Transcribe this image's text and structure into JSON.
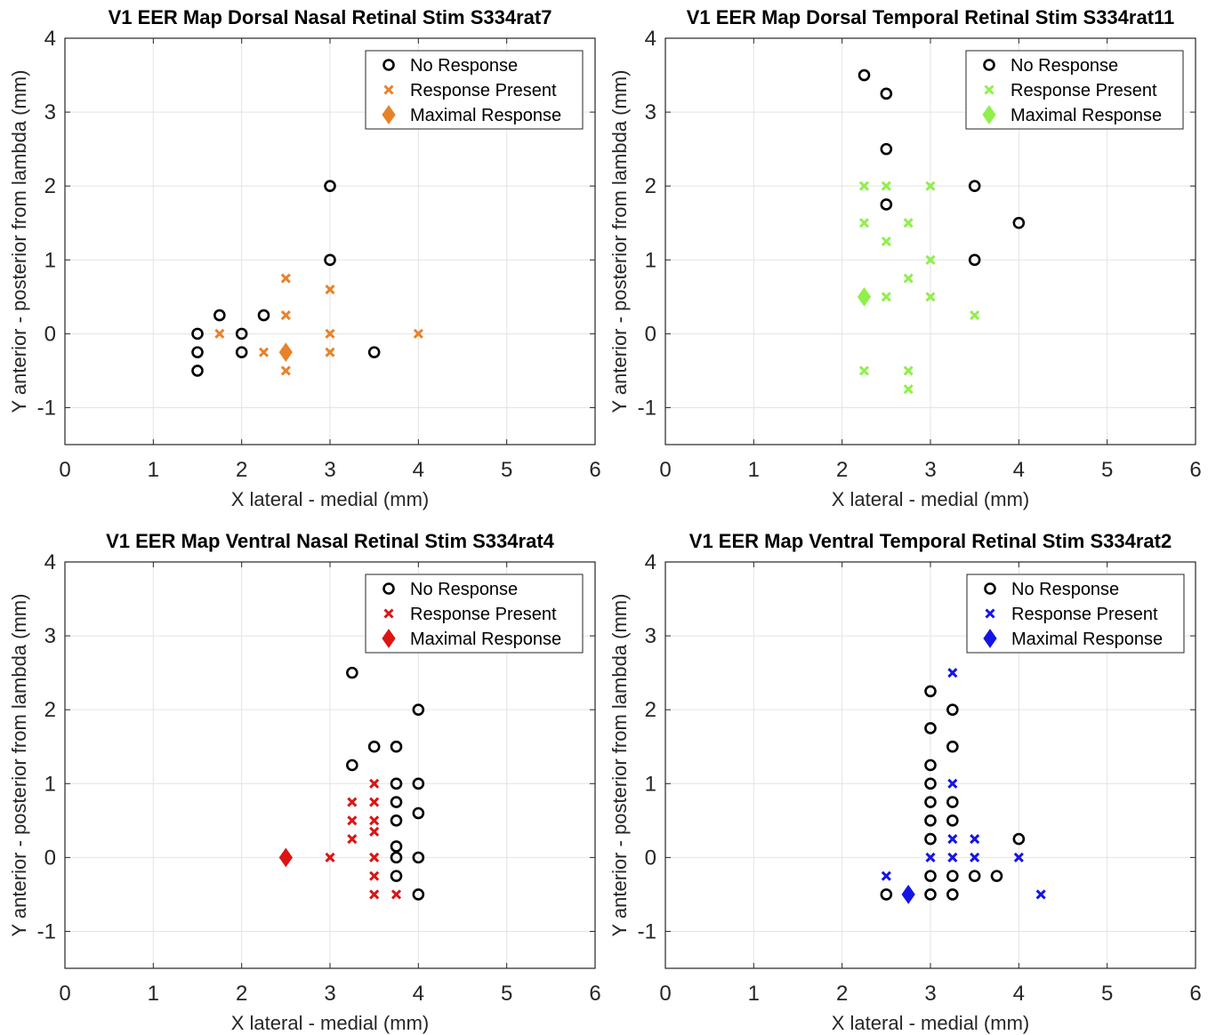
{
  "legend_labels": {
    "no_response": "No Response",
    "response": "Response Present",
    "maximal": "Maximal Response"
  },
  "chart_data": [
    {
      "type": "scatter",
      "title": "V1 EER Map Dorsal Nasal Retinal Stim S334rat7",
      "xlabel": "X lateral - medial (mm)",
      "ylabel": "Y anterior - posterior from lambda (mm)",
      "xlim": [
        0,
        6
      ],
      "ylim": [
        -1.5,
        4
      ],
      "xticks": [
        0,
        1,
        2,
        3,
        4,
        5,
        6
      ],
      "yticks": [
        -1,
        0,
        1,
        2,
        3,
        4
      ],
      "grid": true,
      "legend_position": "top-right",
      "response_color": "#e8822a",
      "series": [
        {
          "name": "No Response",
          "marker": "circle",
          "points": [
            [
              1.5,
              0
            ],
            [
              1.5,
              -0.25
            ],
            [
              1.5,
              -0.5
            ],
            [
              1.75,
              0.25
            ],
            [
              2,
              0
            ],
            [
              2,
              -0.25
            ],
            [
              2.25,
              0.25
            ],
            [
              3,
              2
            ],
            [
              3,
              1
            ],
            [
              3.5,
              -0.25
            ]
          ]
        },
        {
          "name": "Response Present",
          "marker": "x",
          "points": [
            [
              1.75,
              0
            ],
            [
              2.25,
              -0.25
            ],
            [
              2.5,
              0.75
            ],
            [
              2.5,
              0.25
            ],
            [
              2.5,
              -0.5
            ],
            [
              3,
              0.6
            ],
            [
              3,
              0
            ],
            [
              3,
              -0.25
            ],
            [
              4,
              0
            ]
          ]
        },
        {
          "name": "Maximal Response",
          "marker": "diamond",
          "points": [
            [
              2.5,
              -0.25
            ]
          ]
        }
      ]
    },
    {
      "type": "scatter",
      "title": "V1 EER Map Dorsal Temporal Retinal Stim S334rat11",
      "xlabel": "X lateral - medial (mm)",
      "ylabel": "Y anterior - posterior from lambda (mm)",
      "xlim": [
        0,
        6
      ],
      "ylim": [
        -1.5,
        4
      ],
      "xticks": [
        0,
        1,
        2,
        3,
        4,
        5,
        6
      ],
      "yticks": [
        -1,
        0,
        1,
        2,
        3,
        4
      ],
      "grid": true,
      "legend_position": "top-right",
      "response_color": "#8ff04a",
      "series": [
        {
          "name": "No Response",
          "marker": "circle",
          "points": [
            [
              2.25,
              3.5
            ],
            [
              2.5,
              3.25
            ],
            [
              2.5,
              2.5
            ],
            [
              2.5,
              1.75
            ],
            [
              3.5,
              2
            ],
            [
              4,
              1.5
            ],
            [
              3.5,
              1
            ]
          ]
        },
        {
          "name": "Response Present",
          "marker": "x",
          "points": [
            [
              2.25,
              2
            ],
            [
              2.5,
              2
            ],
            [
              3,
              2
            ],
            [
              2.25,
              1.5
            ],
            [
              2.75,
              1.5
            ],
            [
              2.5,
              1.25
            ],
            [
              3,
              1
            ],
            [
              2.75,
              0.75
            ],
            [
              2.5,
              0.5
            ],
            [
              3,
              0.5
            ],
            [
              3.5,
              0.25
            ],
            [
              2.25,
              -0.5
            ],
            [
              2.75,
              -0.5
            ],
            [
              2.75,
              -0.75
            ]
          ]
        },
        {
          "name": "Maximal Response",
          "marker": "diamond",
          "points": [
            [
              2.25,
              0.5
            ]
          ]
        }
      ]
    },
    {
      "type": "scatter",
      "title": "V1 EER Map Ventral Nasal Retinal Stim S334rat4",
      "xlabel": "X lateral - medial (mm)",
      "ylabel": "Y anterior - posterior from lambda (mm)",
      "xlim": [
        0,
        6
      ],
      "ylim": [
        -1.5,
        4
      ],
      "xticks": [
        0,
        1,
        2,
        3,
        4,
        5,
        6
      ],
      "yticks": [
        -1,
        0,
        1,
        2,
        3,
        4
      ],
      "grid": true,
      "legend_position": "top-right",
      "response_color": "#dc1414",
      "series": [
        {
          "name": "No Response",
          "marker": "circle",
          "points": [
            [
              3.25,
              2.5
            ],
            [
              4,
              2
            ],
            [
              3.5,
              1.5
            ],
            [
              3.75,
              1.5
            ],
            [
              3.25,
              1.25
            ],
            [
              3.75,
              1
            ],
            [
              4,
              1
            ],
            [
              3.75,
              0.75
            ],
            [
              3.75,
              0.5
            ],
            [
              4,
              0.6
            ],
            [
              3.75,
              0.15
            ],
            [
              3.75,
              0
            ],
            [
              4,
              0
            ],
            [
              3.75,
              -0.25
            ],
            [
              4,
              -0.5
            ]
          ]
        },
        {
          "name": "Response Present",
          "marker": "x",
          "points": [
            [
              3.5,
              1
            ],
            [
              3.25,
              0.75
            ],
            [
              3.5,
              0.75
            ],
            [
              3.25,
              0.5
            ],
            [
              3.5,
              0.5
            ],
            [
              3.5,
              0.35
            ],
            [
              3.25,
              0.25
            ],
            [
              3,
              0
            ],
            [
              3.5,
              0
            ],
            [
              3.5,
              -0.25
            ],
            [
              3.5,
              -0.5
            ],
            [
              3.75,
              -0.5
            ]
          ]
        },
        {
          "name": "Maximal Response",
          "marker": "diamond",
          "points": [
            [
              2.5,
              0
            ]
          ]
        }
      ]
    },
    {
      "type": "scatter",
      "title": "V1 EER Map Ventral Temporal Retinal Stim S334rat2",
      "xlabel": "X lateral - medial (mm)",
      "ylabel": "Y anterior - posterior from lambda (mm)",
      "xlim": [
        0,
        6
      ],
      "ylim": [
        -1.5,
        4
      ],
      "xticks": [
        0,
        1,
        2,
        3,
        4,
        5,
        6
      ],
      "yticks": [
        -1,
        0,
        1,
        2,
        3,
        4
      ],
      "grid": true,
      "legend_position": "top-right",
      "response_color": "#1414e6",
      "series": [
        {
          "name": "No Response",
          "marker": "circle",
          "points": [
            [
              3,
              2.25
            ],
            [
              3.25,
              2
            ],
            [
              3,
              1.75
            ],
            [
              3.25,
              1.5
            ],
            [
              3,
              1.25
            ],
            [
              3,
              1
            ],
            [
              3,
              0.75
            ],
            [
              3.25,
              0.75
            ],
            [
              3,
              0.5
            ],
            [
              3.25,
              0.5
            ],
            [
              3,
              0.25
            ],
            [
              4,
              0.25
            ],
            [
              3,
              -0.25
            ],
            [
              3.25,
              -0.25
            ],
            [
              3.5,
              -0.25
            ],
            [
              3.75,
              -0.25
            ],
            [
              2.5,
              -0.5
            ],
            [
              3,
              -0.5
            ],
            [
              3.25,
              -0.5
            ]
          ]
        },
        {
          "name": "Response Present",
          "marker": "x",
          "points": [
            [
              3.25,
              2.5
            ],
            [
              3.25,
              1
            ],
            [
              3.25,
              0.25
            ],
            [
              3.5,
              0.25
            ],
            [
              3,
              0
            ],
            [
              3.25,
              0
            ],
            [
              3.5,
              0
            ],
            [
              4,
              0
            ],
            [
              2.5,
              -0.25
            ],
            [
              4.25,
              -0.5
            ]
          ]
        },
        {
          "name": "Maximal Response",
          "marker": "diamond",
          "points": [
            [
              2.75,
              -0.5
            ]
          ]
        }
      ]
    }
  ]
}
